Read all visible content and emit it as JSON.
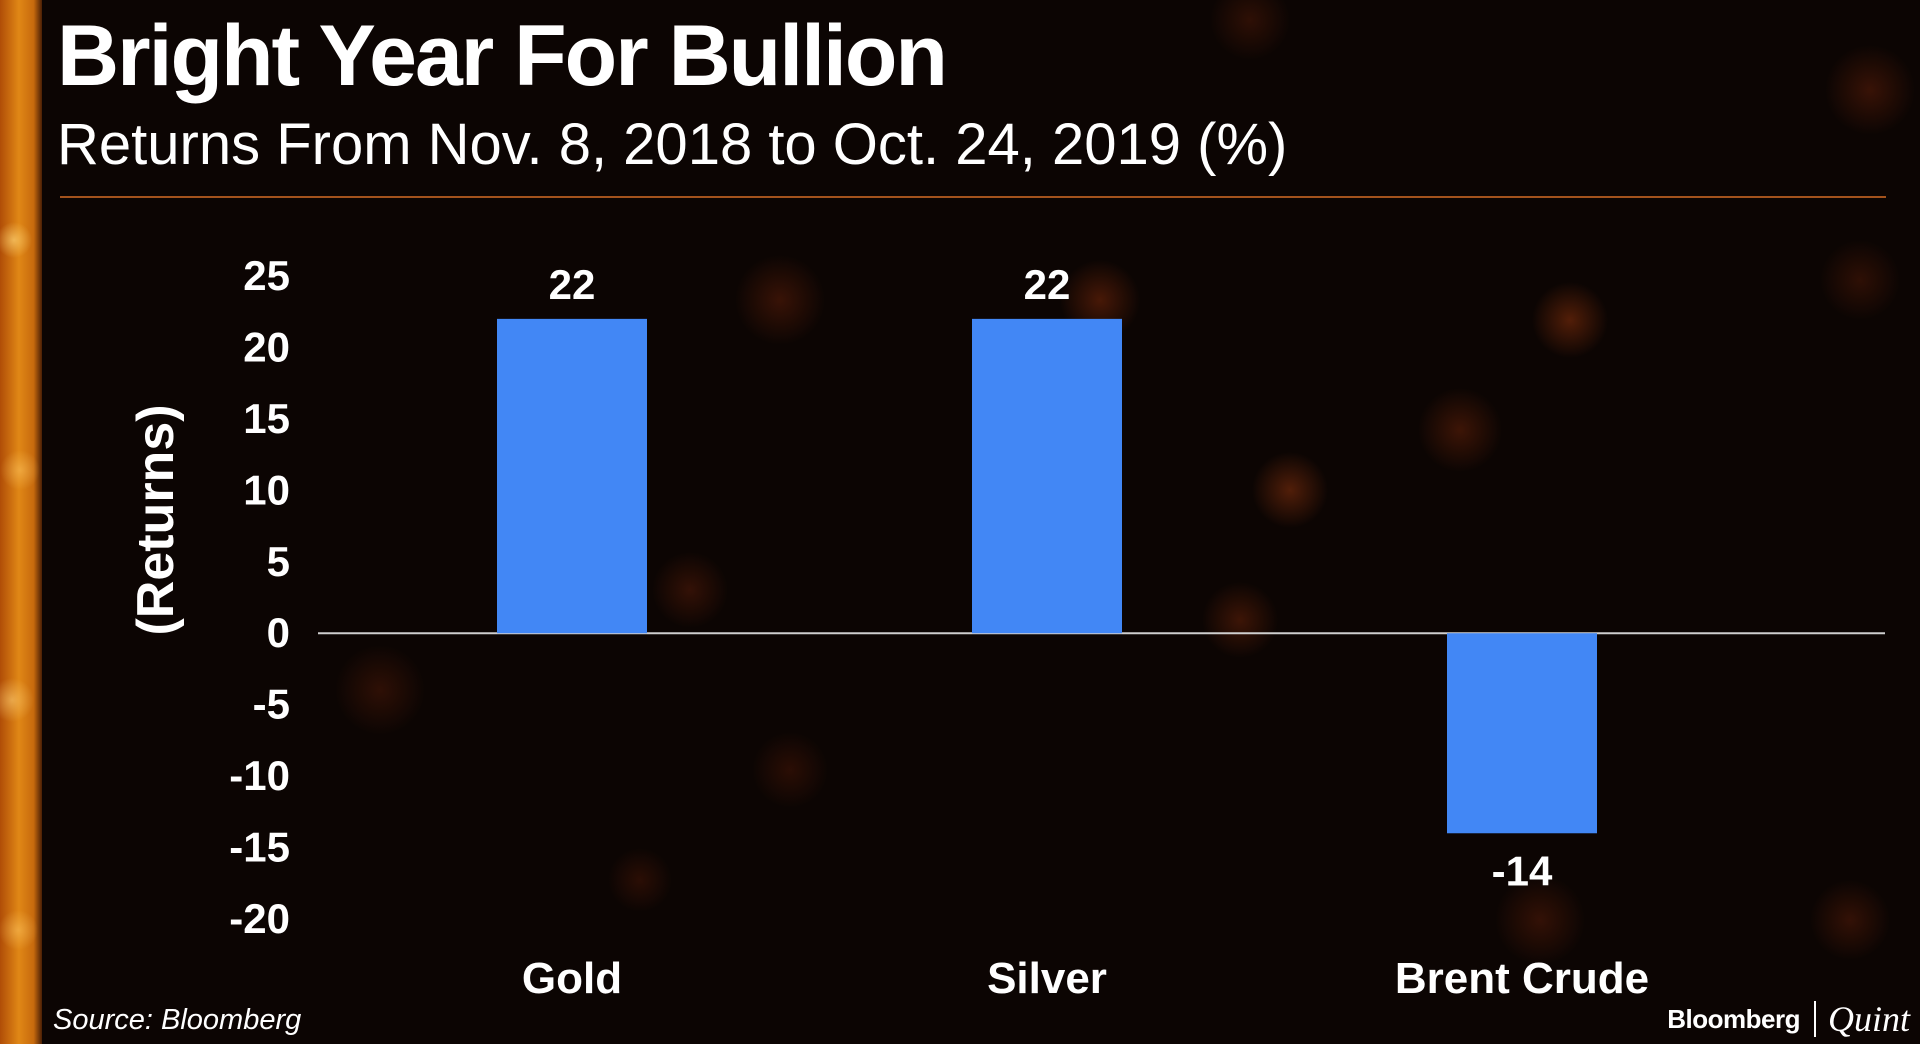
{
  "title": "Bright Year For Bullion",
  "subtitle": "Returns From Nov. 8, 2018 to Oct. 24, 2019 (%)",
  "source": "Source: Bloomberg",
  "brand": {
    "primary": "Bloomberg",
    "secondary": "Quint"
  },
  "colors": {
    "bar": "#4287f5",
    "background": "#0c0503",
    "accent": "#e08716",
    "zero_line": "#cfcfcf"
  },
  "chart_data": {
    "type": "bar",
    "categories": [
      "Gold",
      "Silver",
      "Brent Crude"
    ],
    "values": [
      22,
      22,
      -14
    ],
    "data_labels": [
      "22",
      "22",
      "-14"
    ],
    "ylabel": "(Returns)",
    "ylim": [
      -20,
      25
    ],
    "yticks": [
      25,
      20,
      15,
      10,
      5,
      0,
      -5,
      -10,
      -15,
      -20
    ],
    "grid": false,
    "legend": "none"
  }
}
